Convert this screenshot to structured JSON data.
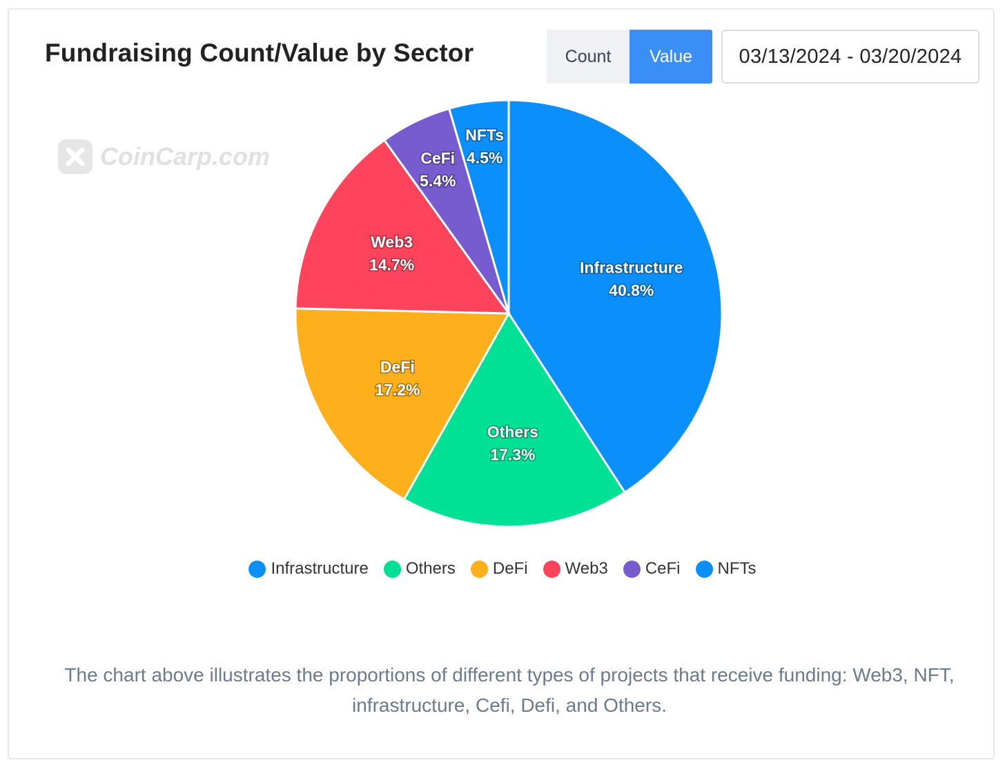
{
  "header": {
    "title": "Fundraising Count/Value by Sector",
    "toggle_count": "Count",
    "toggle_value": "Value",
    "date_range": "03/13/2024 - 03/20/2024"
  },
  "watermark": {
    "text": "CoinCarp.com"
  },
  "chart_data": {
    "type": "pie",
    "title": "Fundraising Count/Value by Sector",
    "slices": [
      {
        "label": "Infrastructure",
        "value": 40.8,
        "display": "40.8%",
        "color": "#0b8ffa"
      },
      {
        "label": "Others",
        "value": 17.3,
        "display": "17.3%",
        "color": "#00e196"
      },
      {
        "label": "DeFi",
        "value": 17.2,
        "display": "17.2%",
        "color": "#fdb01b"
      },
      {
        "label": "Web3",
        "value": 14.7,
        "display": "14.7%",
        "color": "#fe445d"
      },
      {
        "label": "CeFi",
        "value": 5.4,
        "display": "5.4%",
        "color": "#775ccf"
      },
      {
        "label": "NFTs",
        "value": 4.5,
        "display": "4.5%",
        "color": "#0b8ffa"
      }
    ],
    "legend_position": "bottom"
  },
  "caption": "The chart above illustrates the proportions of different types of projects that receive funding: Web3, NFT, infrastructure, Cefi, Defi, and Others."
}
